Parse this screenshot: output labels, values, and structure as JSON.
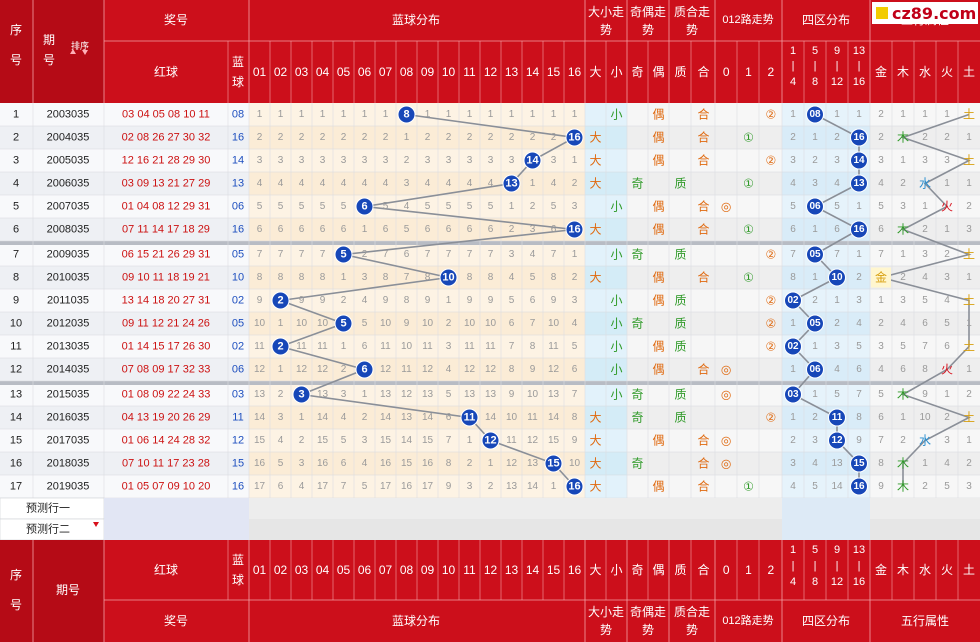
{
  "site_logo": "cz89.com",
  "colors": {
    "header_red": "#d4111c",
    "header_dark": "#9c0010",
    "ball_blue": "#1747b8",
    "red_text": "#cc1111",
    "blue_text": "#1e4fbf",
    "orange_text": "#e06a10",
    "green_text": "#2f9a28"
  },
  "header": {
    "seq": "序号",
    "period": "期号",
    "sort": "排序",
    "prize": "奖号",
    "red_ball": "红球",
    "blue_ball": "蓝球",
    "blue_dist": "蓝球分布",
    "big_small": "大小走势",
    "odd_even": "奇偶走势",
    "prime_comp": "质合走势",
    "road012": "012路走势",
    "four_zone": "四区分布",
    "five_elem": "五行属性",
    "blue_numbers": [
      "01",
      "02",
      "03",
      "04",
      "05",
      "06",
      "07",
      "08",
      "09",
      "10",
      "11",
      "12",
      "13",
      "14",
      "15",
      "16"
    ],
    "bs_cols": [
      "大",
      "小"
    ],
    "oe_cols": [
      "奇",
      "偶"
    ],
    "pc_cols": [
      "质",
      "合"
    ],
    "road_cols": [
      "0",
      "1",
      "2"
    ],
    "zone_cols": [
      [
        "1",
        "|",
        "4"
      ],
      [
        "5",
        "|",
        "8"
      ],
      [
        "9",
        "|",
        "12"
      ],
      [
        "13",
        "|",
        "16"
      ]
    ],
    "elem_cols": [
      "金",
      "木",
      "水",
      "火",
      "土"
    ]
  },
  "predict_rows": [
    "预测行一",
    "预测行二"
  ],
  "rows": [
    {
      "seq": "1",
      "period": "2003035",
      "reds": "03 04 05 08 10 11",
      "blue": "08",
      "miss": [
        "1",
        "1",
        "1",
        "1",
        "1",
        "1",
        "1",
        "",
        "1",
        "1",
        "1",
        "1",
        "1",
        "1",
        "1",
        "1"
      ]
    },
    {
      "seq": "2",
      "period": "2004035",
      "reds": "02 08 26 27 30 32",
      "blue": "16",
      "miss": [
        "2",
        "2",
        "2",
        "2",
        "2",
        "2",
        "2",
        "1",
        "2",
        "2",
        "2",
        "2",
        "2",
        "2",
        "2",
        ""
      ]
    },
    {
      "seq": "3",
      "period": "2005035",
      "reds": "12 16 21 28 29 30",
      "blue": "14",
      "miss": [
        "3",
        "3",
        "3",
        "3",
        "3",
        "3",
        "3",
        "2",
        "3",
        "3",
        "3",
        "3",
        "3",
        "",
        "3",
        "1"
      ]
    },
    {
      "seq": "4",
      "period": "2006035",
      "reds": "03 09 13 21 27 29",
      "blue": "13",
      "miss": [
        "4",
        "4",
        "4",
        "4",
        "4",
        "4",
        "4",
        "3",
        "4",
        "4",
        "4",
        "4",
        "",
        "1",
        "4",
        "2"
      ]
    },
    {
      "seq": "5",
      "period": "2007035",
      "reds": "01 04 08 12 29 31",
      "blue": "06",
      "miss": [
        "5",
        "5",
        "5",
        "5",
        "5",
        "",
        "5",
        "4",
        "5",
        "5",
        "5",
        "5",
        "1",
        "2",
        "5",
        "3"
      ]
    },
    {
      "seq": "6",
      "period": "2008035",
      "reds": "07 11 14 17 18 29",
      "blue": "16",
      "miss": [
        "6",
        "6",
        "6",
        "6",
        "6",
        "1",
        "6",
        "5",
        "6",
        "6",
        "6",
        "6",
        "2",
        "3",
        "6",
        ""
      ]
    },
    {
      "seq": "7",
      "period": "2009035",
      "reds": "06 15 21 26 29 31",
      "blue": "05",
      "miss": [
        "7",
        "7",
        "7",
        "7",
        "",
        "2",
        "7",
        "6",
        "7",
        "7",
        "7",
        "7",
        "3",
        "4",
        "7",
        "1"
      ]
    },
    {
      "seq": "8",
      "period": "2010035",
      "reds": "09 10 11 18 19 21",
      "blue": "10",
      "miss": [
        "8",
        "8",
        "8",
        "8",
        "1",
        "3",
        "8",
        "7",
        "8",
        "",
        "8",
        "8",
        "4",
        "5",
        "8",
        "2"
      ]
    },
    {
      "seq": "9",
      "period": "2011035",
      "reds": "13 14 18 20 27 31",
      "blue": "02",
      "miss": [
        "9",
        "",
        "9",
        "9",
        "2",
        "4",
        "9",
        "8",
        "9",
        "1",
        "9",
        "9",
        "5",
        "6",
        "9",
        "3"
      ]
    },
    {
      "seq": "10",
      "period": "2012035",
      "reds": "09 11 12 21 24 26",
      "blue": "05",
      "miss": [
        "10",
        "1",
        "10",
        "10",
        "",
        "5",
        "10",
        "9",
        "10",
        "2",
        "10",
        "10",
        "6",
        "7",
        "10",
        "4"
      ]
    },
    {
      "seq": "11",
      "period": "2013035",
      "reds": "01 14 15 17 26 30",
      "blue": "02",
      "miss": [
        "11",
        "",
        "11",
        "11",
        "1",
        "6",
        "11",
        "10",
        "11",
        "3",
        "11",
        "11",
        "7",
        "8",
        "11",
        "5"
      ]
    },
    {
      "seq": "12",
      "period": "2014035",
      "reds": "07 08 09 17 32 33",
      "blue": "06",
      "miss": [
        "12",
        "1",
        "12",
        "12",
        "2",
        "",
        "12",
        "11",
        "12",
        "4",
        "12",
        "12",
        "8",
        "9",
        "12",
        "6"
      ]
    },
    {
      "seq": "13",
      "period": "2015035",
      "reds": "01 08 09 22 24 33",
      "blue": "03",
      "miss": [
        "13",
        "2",
        "",
        "13",
        "3",
        "1",
        "13",
        "12",
        "13",
        "5",
        "13",
        "13",
        "9",
        "10",
        "13",
        "7"
      ]
    },
    {
      "seq": "14",
      "period": "2016035",
      "reds": "04 13 19 20 26 29",
      "blue": "11",
      "miss": [
        "14",
        "3",
        "1",
        "14",
        "4",
        "2",
        "14",
        "13",
        "14",
        "6",
        "",
        "14",
        "10",
        "11",
        "14",
        "8"
      ]
    },
    {
      "seq": "15",
      "period": "2017035",
      "reds": "01 06 14 24 28 32",
      "blue": "12",
      "miss": [
        "15",
        "4",
        "2",
        "15",
        "5",
        "3",
        "15",
        "14",
        "15",
        "7",
        "1",
        "",
        "11",
        "12",
        "15",
        "9"
      ]
    },
    {
      "seq": "16",
      "period": "2018035",
      "reds": "07 10 11 17 23 28",
      "blue": "15",
      "miss": [
        "16",
        "5",
        "3",
        "16",
        "6",
        "4",
        "16",
        "15",
        "16",
        "8",
        "2",
        "1",
        "12",
        "13",
        "",
        "10"
      ]
    },
    {
      "seq": "17",
      "period": "2019035",
      "reds": "01 05 07 09 10 20",
      "blue": "16",
      "miss": [
        "17",
        "6",
        "4",
        "17",
        "7",
        "5",
        "17",
        "16",
        "17",
        "9",
        "3",
        "2",
        "13",
        "14",
        "1",
        ""
      ]
    }
  ],
  "cells": {
    "bs": [
      [
        "",
        "小"
      ],
      [
        "大",
        ""
      ],
      [
        "大",
        ""
      ],
      [
        "大",
        ""
      ],
      [
        "",
        "小"
      ],
      [
        "大",
        ""
      ],
      [
        "",
        "小"
      ],
      [
        "大",
        ""
      ],
      [
        "",
        "小"
      ],
      [
        "",
        "小"
      ],
      [
        "",
        "小"
      ],
      [
        "",
        "小"
      ],
      [
        "",
        "小"
      ],
      [
        "大",
        ""
      ],
      [
        "大",
        ""
      ],
      [
        "大",
        ""
      ],
      [
        "大",
        ""
      ]
    ],
    "oe": [
      [
        "",
        "偶"
      ],
      [
        "",
        "偶"
      ],
      [
        "",
        "偶"
      ],
      [
        "奇",
        ""
      ],
      [
        "",
        "偶"
      ],
      [
        "",
        "偶"
      ],
      [
        "奇",
        ""
      ],
      [
        "",
        "偶"
      ],
      [
        "",
        "偶"
      ],
      [
        "奇",
        ""
      ],
      [
        "",
        "偶"
      ],
      [
        "",
        "偶"
      ],
      [
        "奇",
        ""
      ],
      [
        "奇",
        ""
      ],
      [
        "",
        "偶"
      ],
      [
        "奇",
        ""
      ],
      [
        "",
        "偶"
      ]
    ],
    "pc": [
      [
        "",
        "合"
      ],
      [
        "",
        "合"
      ],
      [
        "",
        "合"
      ],
      [
        "质",
        ""
      ],
      [
        "",
        "合"
      ],
      [
        "",
        "合"
      ],
      [
        "质",
        ""
      ],
      [
        "",
        "合"
      ],
      [
        "质",
        ""
      ],
      [
        "质",
        ""
      ],
      [
        "质",
        ""
      ],
      [
        "",
        "合"
      ],
      [
        "质",
        ""
      ],
      [
        "质",
        ""
      ],
      [
        "",
        "合"
      ],
      [
        "",
        "合"
      ],
      [
        "",
        "合"
      ]
    ],
    "road": [
      [
        "",
        "",
        "②"
      ],
      [
        "",
        "①",
        ""
      ],
      [
        "",
        "",
        "②"
      ],
      [
        "",
        "①",
        ""
      ],
      [
        "◎",
        "",
        ""
      ],
      [
        "",
        "①",
        ""
      ],
      [
        "",
        "",
        "②"
      ],
      [
        "",
        "①",
        ""
      ],
      [
        "",
        "",
        "②"
      ],
      [
        "",
        "",
        "②"
      ],
      [
        "",
        "",
        "②"
      ],
      [
        "◎",
        "",
        ""
      ],
      [
        "◎",
        "",
        ""
      ],
      [
        "",
        "",
        "②"
      ],
      [
        "◎",
        "",
        ""
      ],
      [
        "◎",
        "",
        ""
      ],
      [
        "",
        "①",
        ""
      ]
    ],
    "zone": [
      [
        "1",
        "08",
        "1",
        "1"
      ],
      [
        "2",
        "1",
        "2",
        "16"
      ],
      [
        "3",
        "2",
        "3",
        "14"
      ],
      [
        "4",
        "3",
        "4",
        "13"
      ],
      [
        "5",
        "06",
        "5",
        "1"
      ],
      [
        "6",
        "1",
        "6",
        "16"
      ],
      [
        "7",
        "05",
        "7",
        "1"
      ],
      [
        "8",
        "1",
        "10",
        "2"
      ],
      [
        "02",
        "2",
        "1",
        "3"
      ],
      [
        "1",
        "05",
        "2",
        "4"
      ],
      [
        "02",
        "1",
        "3",
        "5"
      ],
      [
        "1",
        "06",
        "4",
        "6"
      ],
      [
        "03",
        "1",
        "5",
        "7"
      ],
      [
        "1",
        "2",
        "11",
        "8"
      ],
      [
        "2",
        "3",
        "12",
        "9"
      ],
      [
        "3",
        "4",
        "13",
        "15"
      ],
      [
        "4",
        "5",
        "14",
        "16"
      ]
    ],
    "elem": [
      [
        "2",
        "1",
        "1",
        "1",
        "土"
      ],
      [
        "2",
        "木",
        "2",
        "2",
        "1"
      ],
      [
        "3",
        "1",
        "3",
        "3",
        "土"
      ],
      [
        "4",
        "2",
        "水",
        "1",
        "1"
      ],
      [
        "5",
        "3",
        "1",
        "火",
        "2"
      ],
      [
        "6",
        "木",
        "2",
        "1",
        "3"
      ],
      [
        "7",
        "1",
        "3",
        "2",
        "土"
      ],
      [
        "金",
        "2",
        "4",
        "3",
        "1"
      ],
      [
        "1",
        "3",
        "5",
        "4",
        "土"
      ],
      [
        "2",
        "4",
        "6",
        "5",
        "1"
      ],
      [
        "3",
        "5",
        "7",
        "6",
        "土"
      ],
      [
        "4",
        "6",
        "8",
        "火",
        "1"
      ],
      [
        "5",
        "木",
        "9",
        "1",
        "2"
      ],
      [
        "6",
        "1",
        "10",
        "2",
        "土"
      ],
      [
        "7",
        "2",
        "水",
        "3",
        "1"
      ],
      [
        "8",
        "木",
        "1",
        "4",
        "2"
      ],
      [
        "9",
        "木",
        "2",
        "5",
        "3"
      ]
    ]
  }
}
